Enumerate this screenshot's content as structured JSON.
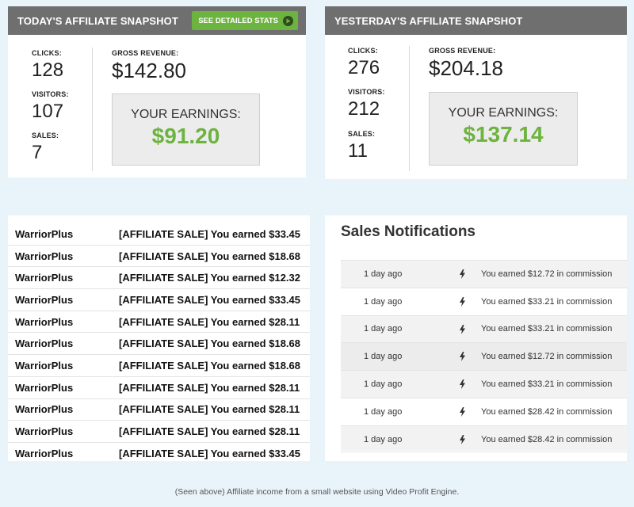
{
  "today": {
    "title": "TODAY'S AFFILIATE SNAPSHOT",
    "button_label": "SEE DETAILED STATS",
    "clicks_label": "CLICKS:",
    "clicks": "128",
    "visitors_label": "VISITORS:",
    "visitors": "107",
    "sales_label": "SALES:",
    "sales": "7",
    "revenue_label": "GROSS REVENUE:",
    "revenue": "$142.80",
    "earnings_label": "YOUR EARNINGS:",
    "earnings": "$91.20"
  },
  "yesterday": {
    "title": "YESTERDAY'S AFFILIATE SNAPSHOT",
    "clicks_label": "CLICKS:",
    "clicks": "276",
    "visitors_label": "VISITORS:",
    "visitors": "212",
    "sales_label": "SALES:",
    "sales": "11",
    "revenue_label": "GROSS REVENUE:",
    "revenue": "$204.18",
    "earnings_label": "YOUR EARNINGS:",
    "earnings": "$137.14"
  },
  "emails": [
    {
      "sender": "WarriorPlus",
      "subject": "[AFFILIATE SALE] You earned $33.45"
    },
    {
      "sender": "WarriorPlus",
      "subject": "[AFFILIATE SALE] You earned $18.68"
    },
    {
      "sender": "WarriorPlus",
      "subject": "[AFFILIATE SALE] You earned $12.32"
    },
    {
      "sender": "WarriorPlus",
      "subject": "[AFFILIATE SALE] You earned $33.45"
    },
    {
      "sender": "WarriorPlus",
      "subject": "[AFFILIATE SALE] You earned $28.11"
    },
    {
      "sender": "WarriorPlus",
      "subject": "[AFFILIATE SALE] You earned $18.68"
    },
    {
      "sender": "WarriorPlus",
      "subject": "[AFFILIATE SALE] You earned $18.68"
    },
    {
      "sender": "WarriorPlus",
      "subject": "[AFFILIATE SALE] You earned $28.11"
    },
    {
      "sender": "WarriorPlus",
      "subject": "[AFFILIATE SALE] You earned $28.11"
    },
    {
      "sender": "WarriorPlus",
      "subject": "[AFFILIATE SALE] You earned $28.11"
    },
    {
      "sender": "WarriorPlus",
      "subject": "[AFFILIATE SALE] You earned $33.45"
    }
  ],
  "notifications": {
    "title": "Sales Notifications",
    "items": [
      {
        "time": "1 day ago",
        "message": "You earned $12.72 in commission"
      },
      {
        "time": "1 day ago",
        "message": "You earned $33.21 in commission"
      },
      {
        "time": "1 day ago",
        "message": "You earned $33.21 in commission"
      },
      {
        "time": "1 day ago",
        "message": "You earned $12.72 in commission"
      },
      {
        "time": "1 day ago",
        "message": "You earned $33.21 in commission"
      },
      {
        "time": "1 day ago",
        "message": "You earned $28.42 in commission"
      },
      {
        "time": "1 day ago",
        "message": "You earned $28.42 in commission"
      }
    ]
  },
  "caption": "(Seen above) Affiliate income from a small website using Video Profit Engine.",
  "colors": {
    "header_gray": "#6f6f6f",
    "accent_green": "#6db33f",
    "page_bg": "#e9f4fa"
  },
  "icons": {
    "stats_button": "play-icon",
    "notification_row": "bolt-icon"
  }
}
